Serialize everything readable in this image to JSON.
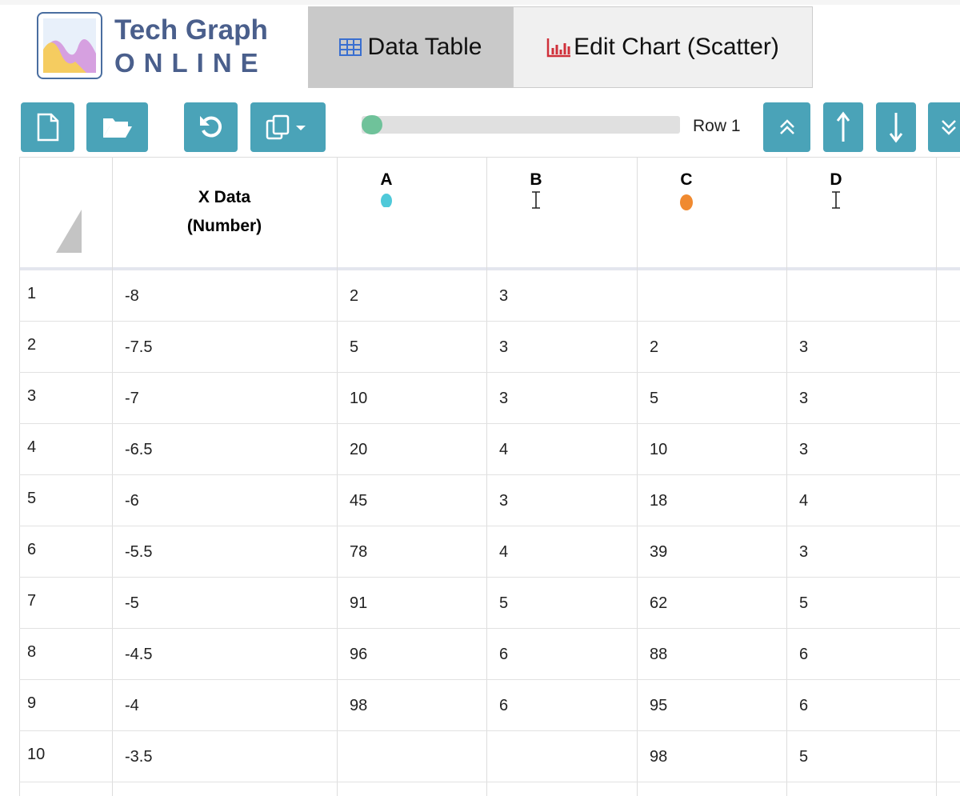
{
  "header": {
    "logo": {
      "title": "Tech Graph",
      "subtitle": "ONLINE"
    },
    "tabs": [
      "Data Table",
      "Edit Chart (Scatter)"
    ]
  },
  "toolbar": {
    "row_indicator": "Row 1"
  },
  "table": {
    "columns": [
      "X Data (Number)",
      "A",
      "B",
      "C",
      "D"
    ],
    "rows": [
      [
        1,
        -8,
        2,
        3,
        null,
        null
      ],
      [
        2,
        -7.5,
        5,
        3,
        2,
        3
      ],
      [
        3,
        -7,
        10,
        3,
        5,
        3
      ],
      [
        4,
        -6.5,
        20,
        4,
        10,
        3
      ],
      [
        5,
        -6,
        45,
        3,
        18,
        4
      ],
      [
        6,
        -5.5,
        78,
        4,
        39,
        3
      ],
      [
        7,
        -5,
        91,
        5,
        62,
        5
      ],
      [
        8,
        -4.5,
        96,
        6,
        88,
        6
      ],
      [
        9,
        -4,
        98,
        6,
        95,
        6
      ],
      [
        10,
        -3.5,
        null,
        null,
        98,
        5
      ]
    ]
  }
}
